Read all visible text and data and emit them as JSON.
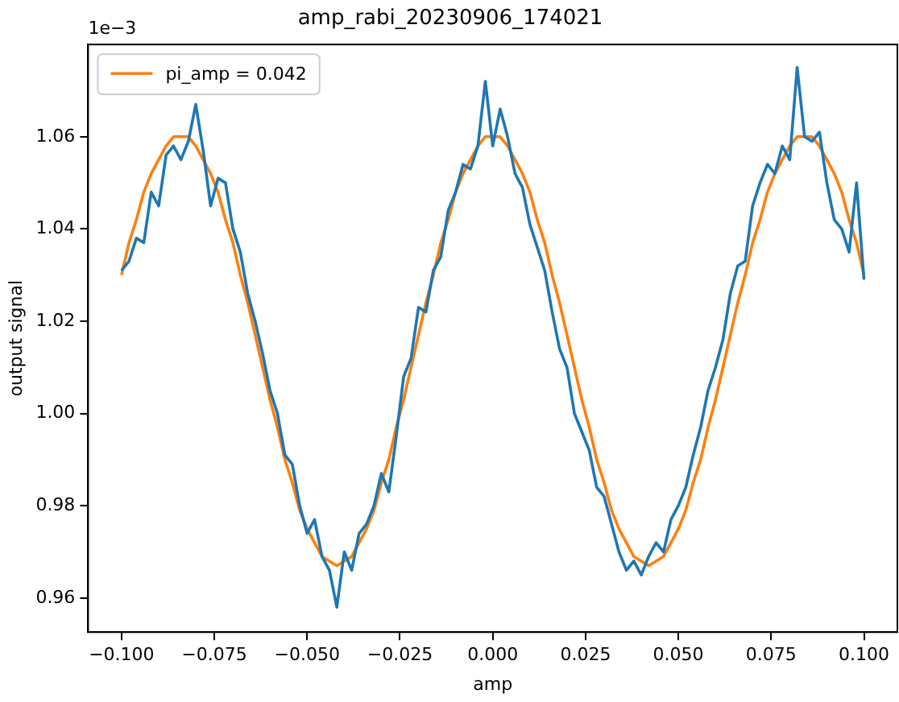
{
  "chart_data": {
    "type": "line",
    "title": "amp_rabi_20230906_174021",
    "xlabel": "amp",
    "ylabel": "output signal",
    "annotations": [
      "1e−3"
    ],
    "x": [
      -0.1,
      -0.098,
      -0.096,
      -0.094,
      -0.092,
      -0.09,
      -0.088,
      -0.086,
      -0.084,
      -0.082,
      -0.08,
      -0.078,
      -0.076,
      -0.074,
      -0.072,
      -0.07,
      -0.068,
      -0.066,
      -0.064,
      -0.062,
      -0.06,
      -0.058,
      -0.056,
      -0.054,
      -0.052,
      -0.05,
      -0.048,
      -0.046,
      -0.044,
      -0.042,
      -0.04,
      -0.038,
      -0.036,
      -0.034,
      -0.032,
      -0.03,
      -0.028,
      -0.026,
      -0.024,
      -0.022,
      -0.02,
      -0.018,
      -0.016,
      -0.014,
      -0.012,
      -0.01,
      -0.008,
      -0.006,
      -0.004,
      -0.002,
      0,
      0.002,
      0.004,
      0.006,
      0.008,
      0.01,
      0.012,
      0.014,
      0.016,
      0.018,
      0.02,
      0.022,
      0.024,
      0.026,
      0.028,
      0.03,
      0.032,
      0.034,
      0.036,
      0.038,
      0.04,
      0.042,
      0.044,
      0.046,
      0.048,
      0.05,
      0.052,
      0.054,
      0.056,
      0.058,
      0.06,
      0.062,
      0.064,
      0.066,
      0.068,
      0.07,
      0.072,
      0.074,
      0.076,
      0.078,
      0.08,
      0.082,
      0.084,
      0.086,
      0.088,
      0.09,
      0.092,
      0.094,
      0.096,
      0.098,
      0.1
    ],
    "series": [
      {
        "color": "#1f77b4",
        "values": [
          1.031,
          1.033,
          1.038,
          1.037,
          1.048,
          1.045,
          1.056,
          1.058,
          1.055,
          1.059,
          1.067,
          1.057,
          1.045,
          1.051,
          1.05,
          1.04,
          1.035,
          1.026,
          1.02,
          1.013,
          1.005,
          1.0,
          0.991,
          0.989,
          0.98,
          0.974,
          0.977,
          0.969,
          0.966,
          0.958,
          0.97,
          0.966,
          0.974,
          0.976,
          0.98,
          0.987,
          0.983,
          0.995,
          1.008,
          1.012,
          1.023,
          1.022,
          1.031,
          1.034,
          1.044,
          1.048,
          1.054,
          1.053,
          1.058,
          1.072,
          1.058,
          1.066,
          1.06,
          1.052,
          1.049,
          1.041,
          1.036,
          1.031,
          1.022,
          1.014,
          1.01,
          1.0,
          0.996,
          0.992,
          0.984,
          0.982,
          0.976,
          0.97,
          0.966,
          0.968,
          0.965,
          0.969,
          0.972,
          0.97,
          0.977,
          0.98,
          0.984,
          0.991,
          0.997,
          1.005,
          1.01,
          1.016,
          1.026,
          1.032,
          1.033,
          1.045,
          1.05,
          1.054,
          1.052,
          1.058,
          1.055,
          1.075,
          1.06,
          1.059,
          1.061,
          1.05,
          1.042,
          1.04,
          1.035,
          1.05,
          1.029
        ]
      },
      {
        "name": "pi_amp = 0.042",
        "color": "#ff7f0e",
        "values": [
          1.03,
          1.037,
          1.042,
          1.048,
          1.052,
          1.055,
          1.058,
          1.06,
          1.06,
          1.06,
          1.058,
          1.055,
          1.052,
          1.048,
          1.042,
          1.037,
          1.03,
          1.024,
          1.017,
          1.01,
          1.003,
          0.997,
          0.99,
          0.985,
          0.979,
          0.975,
          0.972,
          0.969,
          0.968,
          0.967,
          0.968,
          0.969,
          0.972,
          0.975,
          0.979,
          0.985,
          0.99,
          0.997,
          1.003,
          1.01,
          1.017,
          1.024,
          1.03,
          1.037,
          1.042,
          1.048,
          1.052,
          1.055,
          1.058,
          1.06,
          1.06,
          1.06,
          1.058,
          1.055,
          1.052,
          1.048,
          1.042,
          1.037,
          1.03,
          1.024,
          1.017,
          1.01,
          1.003,
          0.997,
          0.99,
          0.985,
          0.979,
          0.975,
          0.972,
          0.969,
          0.968,
          0.967,
          0.968,
          0.969,
          0.972,
          0.975,
          0.979,
          0.985,
          0.99,
          0.997,
          1.003,
          1.01,
          1.017,
          1.024,
          1.03,
          1.037,
          1.042,
          1.048,
          1.052,
          1.055,
          1.058,
          1.06,
          1.06,
          1.06,
          1.058,
          1.055,
          1.052,
          1.048,
          1.042,
          1.037,
          1.03
        ]
      }
    ],
    "xlim": [
      -0.109,
      0.109
    ],
    "ylim": [
      0.9526,
      1.08
    ],
    "xticks": [
      {
        "value": -0.1,
        "label": "−0.100"
      },
      {
        "value": -0.075,
        "label": "−0.075"
      },
      {
        "value": -0.05,
        "label": "−0.050"
      },
      {
        "value": -0.025,
        "label": "−0.025"
      },
      {
        "value": 0,
        "label": "0.000"
      },
      {
        "value": 0.025,
        "label": "0.025"
      },
      {
        "value": 0.05,
        "label": "0.050"
      },
      {
        "value": 0.075,
        "label": "0.075"
      },
      {
        "value": 0.1,
        "label": "0.100"
      }
    ],
    "yticks": [
      0.96,
      0.98,
      {
        "value": 1,
        "label": "1.00"
      },
      1.02,
      1.04,
      1.06
    ],
    "grid": false,
    "legend": "top left",
    "marker": "none",
    "line_style": "solid"
  }
}
